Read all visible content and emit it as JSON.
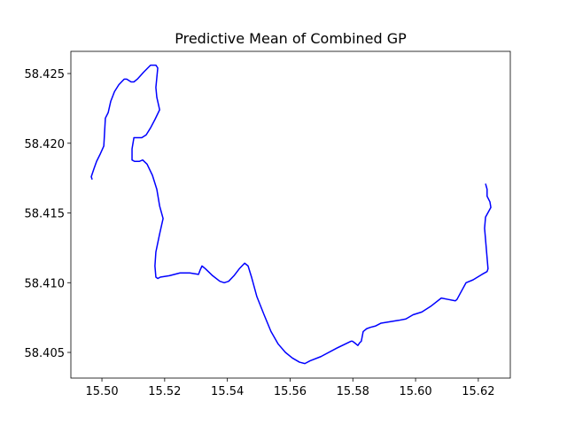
{
  "chart_data": {
    "type": "line",
    "title": "Predictive Mean of Combined GP",
    "series": [
      {
        "color": "#0000ff",
        "x": [
          15.4969,
          15.4966,
          15.4975,
          15.4983,
          15.4994,
          15.5006,
          15.5011,
          15.502,
          15.5028,
          15.504,
          15.5054,
          15.5071,
          15.5079,
          15.5093,
          15.5102,
          15.5113,
          15.5133,
          15.5155,
          15.5172,
          15.5178,
          15.5172,
          15.5175,
          15.5184,
          15.5169,
          15.5155,
          15.5141,
          15.5127,
          15.511,
          15.5102,
          15.5096,
          15.5096,
          15.5104,
          15.5119,
          15.513,
          15.5144,
          15.5161,
          15.5175,
          15.5184,
          15.5195,
          15.5184,
          15.5172,
          15.5169,
          15.5172,
          15.5178,
          15.5186,
          15.5215,
          15.5249,
          15.528,
          15.5308,
          15.5313,
          15.5319,
          15.533,
          15.5353,
          15.5376,
          15.539,
          15.5404,
          15.5421,
          15.5438,
          15.5455,
          15.5466,
          15.5477,
          15.5494,
          15.5517,
          15.5539,
          15.5562,
          15.5585,
          15.5607,
          15.563,
          15.5647,
          15.5664,
          15.5698,
          15.5748,
          15.5794,
          15.5799,
          15.5805,
          15.5816,
          15.5822,
          15.5827,
          15.5833,
          15.5844,
          15.5856,
          15.5873,
          15.589,
          15.5918,
          15.5946,
          15.5969,
          15.5992,
          15.602,
          15.6048,
          15.6082,
          15.6104,
          15.6127,
          15.6132,
          15.6144,
          15.6161,
          15.6183,
          15.6212,
          15.6228,
          15.6231,
          15.622,
          15.6223,
          15.624,
          15.6237,
          15.6228,
          15.6228,
          15.6223
        ],
        "values": [
          58.4174,
          58.4176,
          58.4182,
          58.4187,
          58.4192,
          58.4198,
          58.4218,
          58.4222,
          58.423,
          58.4237,
          58.4242,
          58.4246,
          58.4246,
          58.4244,
          58.4244,
          58.4246,
          58.4251,
          58.4256,
          58.4256,
          58.4254,
          58.424,
          58.4233,
          58.4224,
          58.4217,
          58.4211,
          58.4206,
          58.4204,
          58.4204,
          58.4204,
          58.4196,
          58.4188,
          58.4187,
          58.4187,
          58.4188,
          58.4185,
          58.4177,
          58.4167,
          58.4155,
          58.4146,
          58.4135,
          58.4122,
          58.4112,
          58.4104,
          58.4103,
          58.4104,
          58.4105,
          58.4107,
          58.4107,
          58.4106,
          58.4109,
          58.4112,
          58.411,
          58.4105,
          58.4101,
          58.41,
          58.4101,
          58.4105,
          58.411,
          58.4114,
          58.4112,
          58.4104,
          58.409,
          58.4077,
          58.4065,
          58.4056,
          58.405,
          58.4046,
          58.4043,
          58.4042,
          58.4044,
          58.4047,
          58.4053,
          58.4058,
          58.4058,
          58.4057,
          58.4055,
          58.4057,
          58.4058,
          58.4065,
          58.4067,
          58.4068,
          58.4069,
          58.4071,
          58.4072,
          58.4073,
          58.4074,
          58.4077,
          58.4079,
          58.4083,
          58.4089,
          58.4088,
          58.4087,
          58.4088,
          58.4093,
          58.41,
          58.4102,
          58.4106,
          58.4108,
          58.411,
          58.4139,
          58.4147,
          58.4154,
          58.4158,
          58.4162,
          58.4167,
          58.4171
        ]
      }
    ],
    "xlim": [
      15.4901,
      15.6302
    ],
    "ylim": [
      58.40316,
      58.42659
    ],
    "xticks": [
      {
        "value": 15.5,
        "label": "15.50"
      },
      15.52,
      15.54,
      15.56,
      15.58,
      {
        "value": 15.6,
        "label": "15.60"
      },
      15.62
    ],
    "yticks": [
      58.405,
      {
        "value": 58.41,
        "label": "58.410"
      },
      58.415,
      {
        "value": 58.42,
        "label": "58.420"
      },
      58.425
    ],
    "grid": false
  }
}
